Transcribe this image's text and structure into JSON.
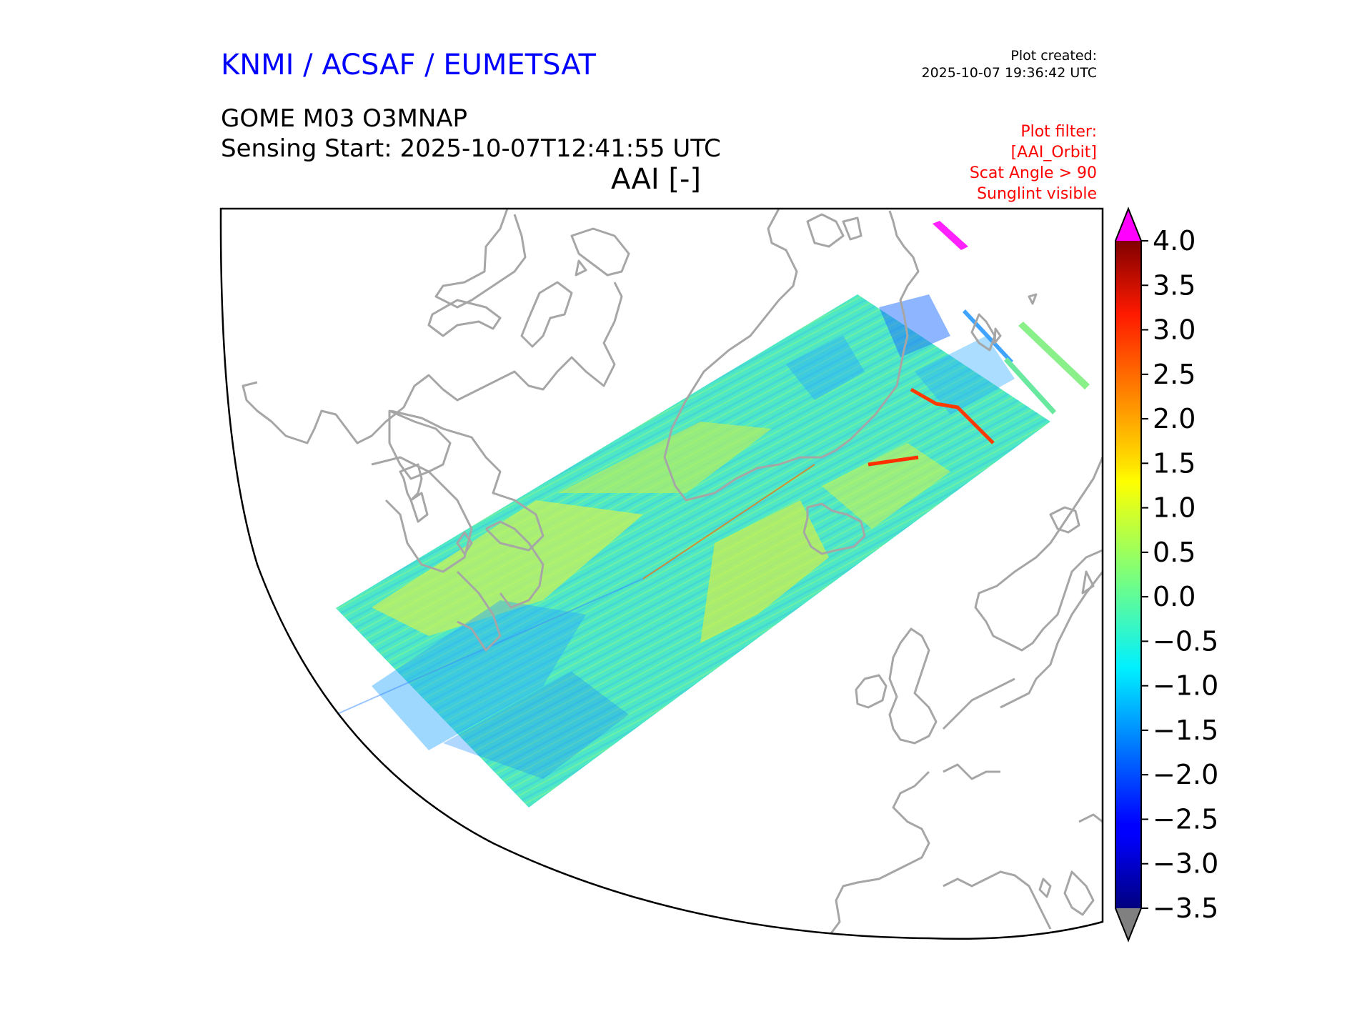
{
  "header": {
    "organization": "KNMI / ACSAF / EUMETSAT",
    "created_label": "Plot created:",
    "created_time": "2025-10-07 19:36:42 UTC",
    "product": "GOME M03 O3MNAP",
    "sensing_start": "Sensing Start: 2025-10-07T12:41:55 UTC",
    "quantity": "AAI [-]"
  },
  "filter": {
    "title": "Plot filter:",
    "lines": [
      "[AAI_Orbit]",
      "Scat Angle > 90",
      "Sunglint visible"
    ]
  },
  "colorbar": {
    "ticks": [
      "4.0",
      "3.5",
      "3.0",
      "2.5",
      "2.0",
      "1.5",
      "1.0",
      "0.5",
      "0.0",
      "−0.5",
      "−1.0",
      "−1.5",
      "−2.0",
      "−2.5",
      "−3.0",
      "−3.5"
    ],
    "min": -3.5,
    "max": 4.0,
    "over_color": "#ff00ff",
    "under_color": "#808080",
    "colormap": "jet"
  },
  "map": {
    "coastline_color": "#a6a6a6",
    "frame_color": "#000000"
  }
}
